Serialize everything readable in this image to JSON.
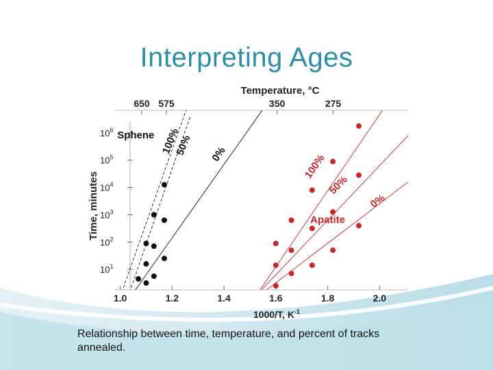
{
  "slide": {
    "title": "Interpreting Ages",
    "caption": "Relationship between time, temperature, and percent of tracks annealed."
  },
  "chart_data": {
    "type": "scatter",
    "xlabel": "1000/T, K",
    "xlabel_sup": "-1",
    "ylabel": "Time, minutes",
    "top_axis_label": "Temperature, °C",
    "x_ticks": [
      1.0,
      1.2,
      1.4,
      1.6,
      1.8,
      2.0
    ],
    "x_tick_labels": [
      "1.0",
      "1.2",
      "1.4",
      "1.6",
      "1.8",
      "2.0"
    ],
    "top_ticks": [
      {
        "label": "650",
        "x": 1.083
      },
      {
        "label": "575",
        "x": 1.178
      },
      {
        "label": "350",
        "x": 1.605
      },
      {
        "label": "275",
        "x": 1.821
      }
    ],
    "y_scale": "log",
    "y_ticks": [
      1,
      2,
      3,
      4,
      5,
      6
    ],
    "y_tick_labels": [
      {
        "base": "10",
        "exp": "1"
      },
      {
        "base": "10",
        "exp": "2"
      },
      {
        "base": "10",
        "exp": "3"
      },
      {
        "base": "10",
        "exp": "4"
      },
      {
        "base": "10",
        "exp": "5"
      },
      {
        "base": "10",
        "exp": "6"
      }
    ],
    "xlim": [
      0.98,
      2.11
    ],
    "ylim_log10": [
      0.25,
      6.9
    ],
    "series": [
      {
        "mineral": "sphene",
        "color": "#111111",
        "points": [
          [
            1.07,
            0.65
          ],
          [
            1.1,
            0.5
          ],
          [
            1.1,
            1.2
          ],
          [
            1.1,
            1.95
          ],
          [
            1.13,
            0.75
          ],
          [
            1.13,
            1.85
          ],
          [
            1.13,
            3.0
          ],
          [
            1.17,
            1.4
          ],
          [
            1.17,
            2.8
          ],
          [
            1.17,
            4.1
          ]
        ],
        "lines": [
          {
            "label": "100%",
            "from": [
              1.0,
              0.0
            ],
            "to": [
              1.26,
              7.0
            ]
          },
          {
            "label": "50%",
            "from": [
              1.03,
              0.0
            ],
            "to": [
              1.27,
              6.6
            ]
          },
          {
            "label": "0%",
            "from": [
              1.04,
              0.0
            ],
            "to": [
              1.62,
              7.8
            ]
          }
        ]
      },
      {
        "mineral": "apatite",
        "color": "#c8282b",
        "points": [
          [
            1.6,
            0.4
          ],
          [
            1.6,
            1.15
          ],
          [
            1.6,
            1.95
          ],
          [
            1.66,
            0.85
          ],
          [
            1.66,
            1.7
          ],
          [
            1.66,
            2.8
          ],
          [
            1.74,
            1.15
          ],
          [
            1.74,
            2.5
          ],
          [
            1.74,
            3.9
          ],
          [
            1.82,
            1.7
          ],
          [
            1.82,
            3.1
          ],
          [
            1.82,
            4.95
          ],
          [
            1.92,
            2.6
          ],
          [
            1.92,
            4.45
          ],
          [
            1.92,
            6.25
          ]
        ],
        "lines": [
          {
            "label": "100%",
            "from": [
              1.5,
              -0.3
            ],
            "to": [
              2.11,
              8.2
            ]
          },
          {
            "label": "50%",
            "from": [
              1.52,
              0.0
            ],
            "to": [
              2.11,
              5.9
            ]
          },
          {
            "label": "0%",
            "from": [
              1.53,
              0.0
            ],
            "to": [
              2.11,
              4.2
            ]
          }
        ]
      }
    ],
    "annotations": [
      {
        "text": "Sphene",
        "color": "#111111",
        "at": [
          1.06,
          5.8
        ]
      },
      {
        "text": "100%",
        "color": "#111111",
        "at": [
          1.205,
          5.65
        ],
        "rotate": -68
      },
      {
        "text": "50%",
        "color": "#111111",
        "at": [
          1.255,
          5.5
        ],
        "rotate": -68
      },
      {
        "text": "0%",
        "color": "#111111",
        "at": [
          1.39,
          5.15
        ],
        "rotate": -55
      },
      {
        "text": "100%",
        "color": "#c8282b",
        "at": [
          1.76,
          4.7
        ],
        "rotate": -55
      },
      {
        "text": "50%",
        "color": "#c8282b",
        "at": [
          1.85,
          4.0
        ],
        "rotate": -45
      },
      {
        "text": "0%",
        "color": "#c8282b",
        "at": [
          2.0,
          3.4
        ],
        "rotate": -35
      },
      {
        "text": "Apatite",
        "color": "#c8282b",
        "at": [
          1.8,
          2.7
        ]
      }
    ]
  }
}
